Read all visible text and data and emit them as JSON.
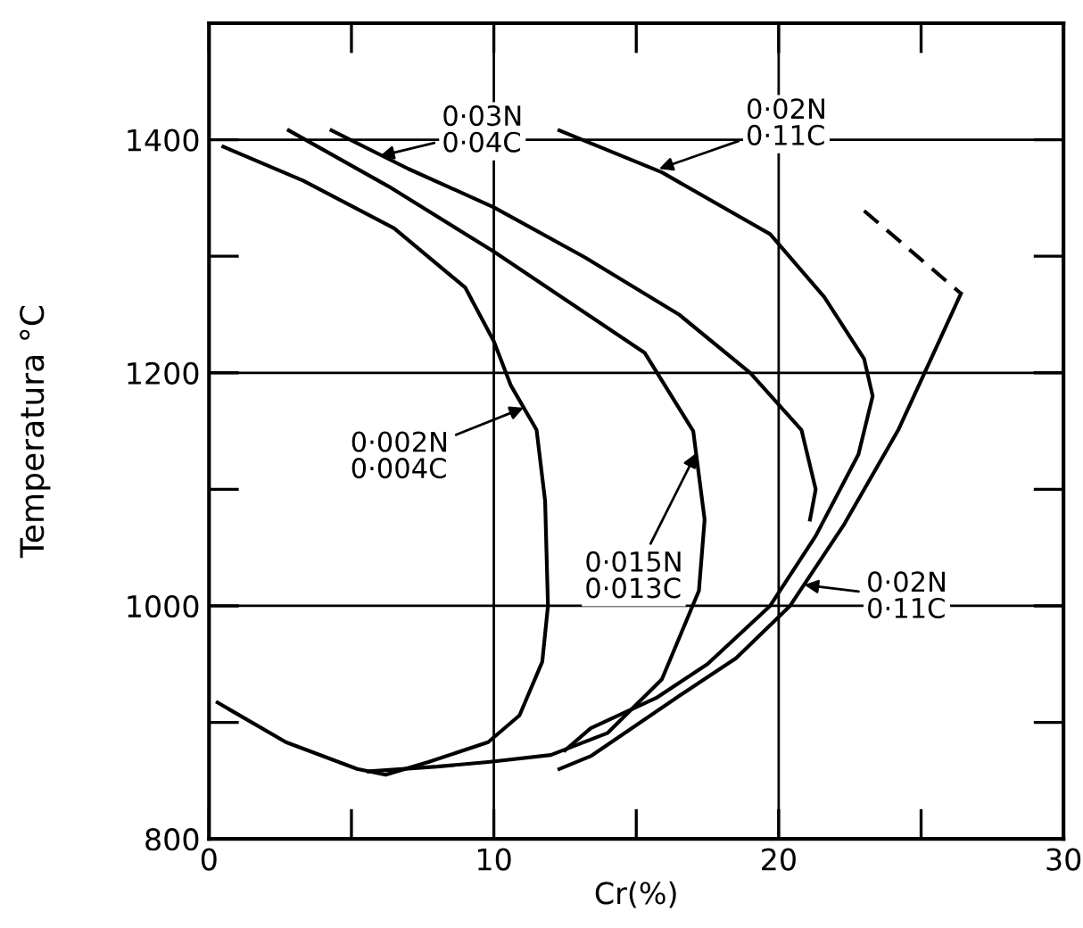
{
  "chart_data": {
    "type": "line",
    "xlabel": "Cr(%)",
    "ylabel": "Temperatura °C",
    "xlim": [
      0,
      30
    ],
    "ylim": [
      800,
      1500
    ],
    "xticks": [
      0,
      10,
      20,
      30
    ],
    "yticks": [
      800,
      1000,
      1200,
      1400
    ],
    "grid": false,
    "marker": "none",
    "ref_lines": [
      {
        "axis": "x",
        "value": 10,
        "color": "#000000"
      },
      {
        "axis": "x",
        "value": 20,
        "color": "#000000"
      },
      {
        "axis": "y",
        "value": 1000,
        "color": "#000000"
      },
      {
        "axis": "y",
        "value": 1200,
        "color": "#000000"
      },
      {
        "axis": "y",
        "value": 1400,
        "color": "#000000"
      }
    ],
    "series": [
      {
        "color": "#000000",
        "line_style": "solid",
        "x": [
          0.5,
          3.3,
          6.5,
          9,
          10,
          10.6,
          11.5,
          11.8,
          11.9,
          11.7,
          10.9,
          9.8,
          7.7,
          6.2,
          5.2,
          2.7,
          0.3
        ],
        "values": [
          1394,
          1365,
          1324,
          1273,
          1227,
          1189,
          1151,
          1090,
          1000,
          952,
          906,
          883,
          866,
          855,
          860,
          883,
          917
        ]
      },
      {
        "color": "#000000",
        "line_style": "solid",
        "x": [
          2.8,
          6.3,
          10,
          15.3,
          17,
          17.4,
          17.2,
          15.9,
          14,
          12,
          9.8,
          8,
          5.6
        ],
        "values": [
          1408,
          1360,
          1304,
          1217,
          1150,
          1074,
          1013,
          937,
          891,
          872,
          866,
          862,
          858
        ]
      },
      {
        "color": "#000000",
        "line_style": "solid",
        "x": [
          4.3,
          7,
          10,
          13.2,
          16.5,
          19,
          20.8,
          21.3,
          21.1
        ],
        "values": [
          1408,
          1375,
          1342,
          1299,
          1250,
          1200,
          1151,
          1100,
          1074
        ]
      },
      {
        "color": "#000000",
        "line_style": "solid",
        "x": [
          12.3,
          15.9,
          19.7,
          21.6,
          23,
          23.3,
          22.8,
          21.3,
          19.7,
          17.5,
          15.7,
          13.4,
          12.5
        ],
        "values": [
          1408,
          1372,
          1319,
          1265,
          1212,
          1180,
          1130,
          1060,
          1000,
          950,
          921,
          895,
          876
        ]
      },
      {
        "color": "#000000",
        "line_style": "solid",
        "x": [
          26.4,
          25.5,
          24.2,
          22.3,
          20.4,
          18.5,
          16.4,
          13.4,
          12.3
        ],
        "values": [
          1268,
          1220,
          1151,
          1070,
          1000,
          955,
          921,
          871,
          860
        ]
      },
      {
        "color": "#000000",
        "line_style": "dashed",
        "x": [
          23,
          26.4
        ],
        "values": [
          1339,
          1268
        ]
      }
    ],
    "annotations": [
      {
        "text": "0·03N\n0·04C",
        "x": 6.0,
        "y": 1386
      },
      {
        "text": "0·02N\n0·11C",
        "x": 15.8,
        "y": 1375
      },
      {
        "text": "0·002N\n0·004C",
        "x": 11.05,
        "y": 1170
      },
      {
        "text": "0·015N\n0·013C",
        "x": 17.1,
        "y": 1131
      },
      {
        "text": "0·02N\n0·11C",
        "x": 20.9,
        "y": 1018
      }
    ]
  }
}
